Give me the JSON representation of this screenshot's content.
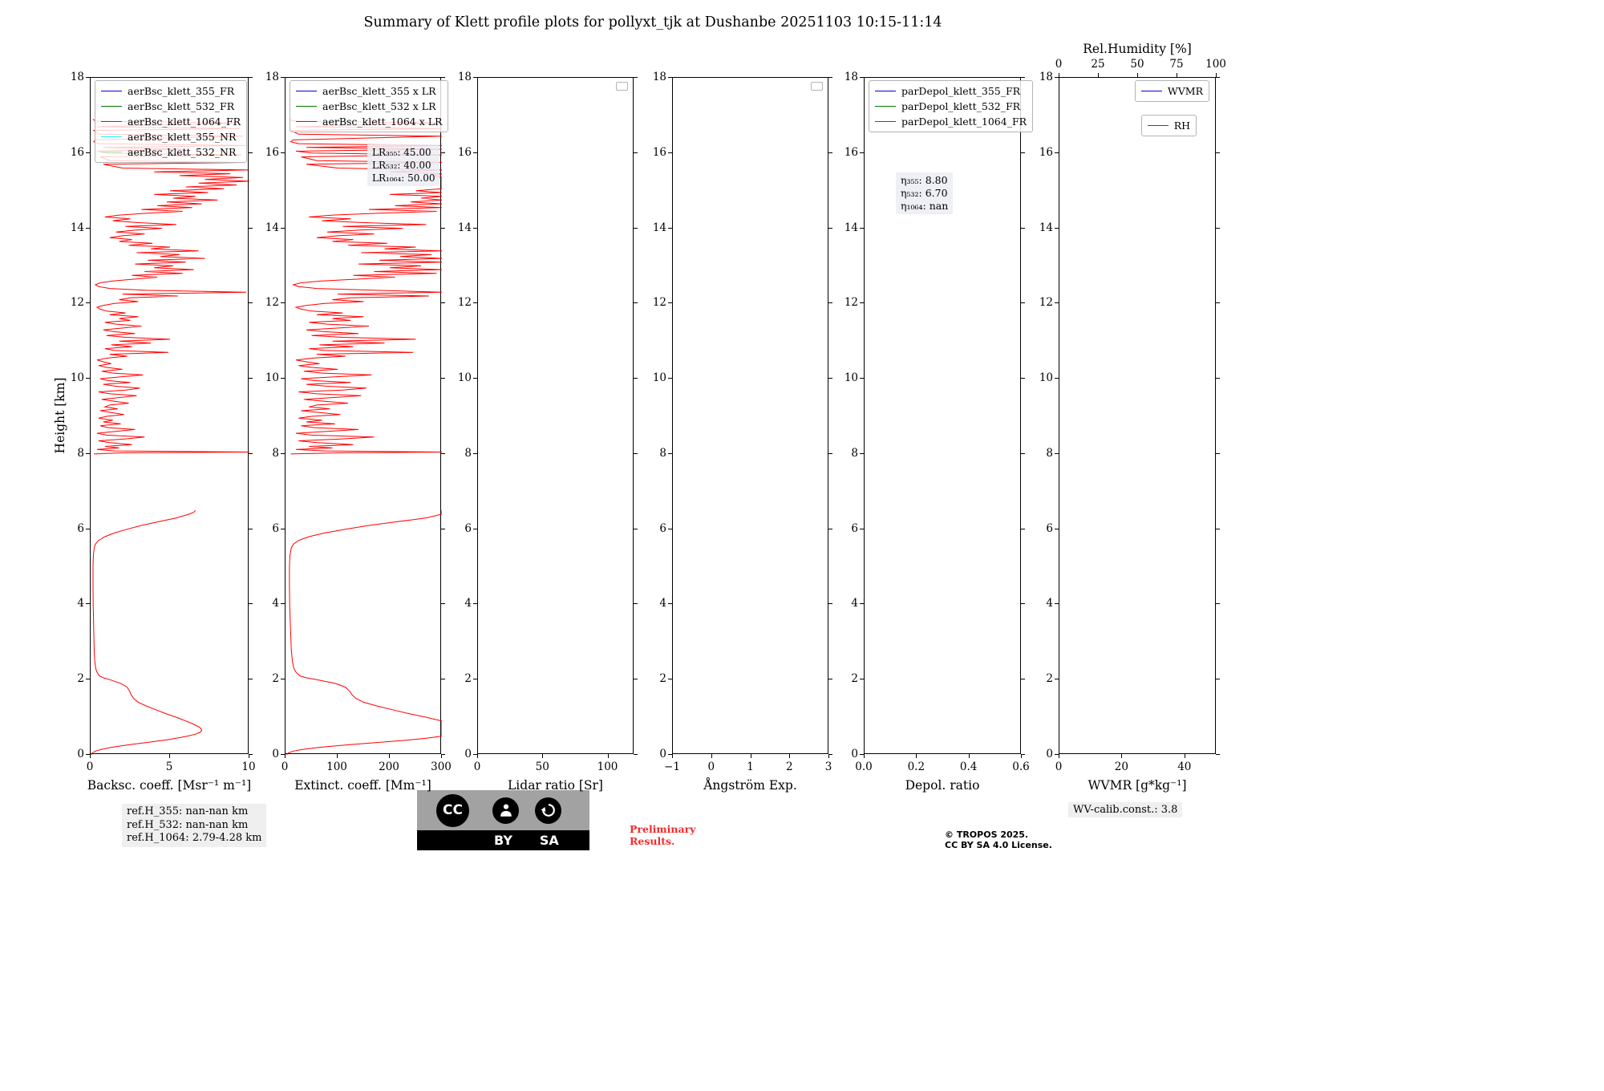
{
  "title": "Summary of Klett profile plots for pollyxt_tjk at Dushanbe 20251103 10:15-11:14",
  "ylabel": "Height [km]",
  "axes_common": {
    "ylim": [
      0,
      18
    ],
    "ytick_vals": [
      0,
      2,
      4,
      6,
      8,
      10,
      12,
      14,
      16,
      18
    ],
    "ytick_labels": [
      "0",
      "2",
      "4",
      "6",
      "8",
      "10",
      "12",
      "14",
      "16",
      "18"
    ]
  },
  "chart_data": [
    {
      "id": "backscatter",
      "type": "line",
      "xlabel": "Backsc. coeff. [Msr⁻¹ m⁻¹]",
      "xlim": [
        0,
        10
      ],
      "xtick_vals": [
        0,
        5,
        10
      ],
      "xtick_labels": [
        "0",
        "5",
        "10"
      ],
      "ylim": [
        0,
        18
      ],
      "legend": [
        {
          "label": "aerBsc_klett_355_FR",
          "color": "#0000cc"
        },
        {
          "label": "aerBsc_klett_532_FR",
          "color": "#007a00"
        },
        {
          "label": "aerBsc_klett_1064_FR",
          "color": "#ff0000"
        },
        {
          "label": "aerBsc_klett_355_NR",
          "color": "#00ffff"
        },
        {
          "label": "aerBsc_klett_532_NR",
          "color": "#99ff99"
        }
      ],
      "series": [
        {
          "name": "aerBsc_klett_1064_FR",
          "color": "#ff0000",
          "profile": "bsc_1064",
          "scale": 1,
          "clip": 10
        }
      ]
    },
    {
      "id": "extinction",
      "type": "line",
      "xlabel": "Extinct. coeff. [Mm⁻¹]",
      "xlim": [
        0,
        300
      ],
      "xtick_vals": [
        0,
        100,
        200,
        300
      ],
      "xtick_labels": [
        "0",
        "100",
        "200",
        "300"
      ],
      "ylim": [
        0,
        18
      ],
      "legend": [
        {
          "label": "aerBsc_klett_355 x LR",
          "color": "#0000cc"
        },
        {
          "label": "aerBsc_klett_532 x LR",
          "color": "#007a00"
        },
        {
          "label": "aerBsc_klett_1064 x LR",
          "color": "#ff0000"
        }
      ],
      "annotation": {
        "lines": [
          "LR₃₅₅: 45.00",
          "LR₅₃₂: 40.00",
          "LR₁₀₆₄: 50.00"
        ]
      },
      "series": [
        {
          "name": "aerBsc_klett_1064_x_LR",
          "color": "#ff0000",
          "profile": "bsc_1064",
          "scale": 50,
          "clip": 300
        }
      ]
    },
    {
      "id": "lidar-ratio",
      "type": "line",
      "xlabel": "Lidar ratio [Sr]",
      "xlim": [
        0,
        120
      ],
      "xtick_vals": [
        0,
        50,
        100
      ],
      "xtick_labels": [
        "0",
        "50",
        "100"
      ],
      "ylim": [
        0,
        18
      ],
      "mini_legend": true,
      "series": []
    },
    {
      "id": "angstroem",
      "type": "line",
      "xlabel": "Ångström Exp.",
      "xlim": [
        -1,
        3
      ],
      "xtick_vals": [
        -1,
        0,
        1,
        2,
        3
      ],
      "xtick_labels": [
        "−1",
        "0",
        "1",
        "2",
        "3"
      ],
      "ylim": [
        0,
        18
      ],
      "mini_legend": true,
      "series": []
    },
    {
      "id": "depol",
      "type": "line",
      "xlabel": "Depol. ratio",
      "xlim": [
        0,
        0.6
      ],
      "xtick_vals": [
        0,
        0.2,
        0.4,
        0.6
      ],
      "xtick_labels": [
        "0.0",
        "0.2",
        "0.4",
        "0.6"
      ],
      "ylim": [
        0,
        18
      ],
      "legend": [
        {
          "label": "parDepol_klett_355_FR",
          "color": "#0000cc"
        },
        {
          "label": "parDepol_klett_532_FR",
          "color": "#007a00"
        },
        {
          "label": "parDepol_klett_1064_FR",
          "color": "#ff0000"
        }
      ],
      "annotation": {
        "lines": [
          "η₃₅₅: 8.80",
          "η₅₃₂: 6.70",
          "η₁₀₆₄: nan"
        ]
      },
      "series": []
    },
    {
      "id": "wvmr",
      "type": "line",
      "xlabel": "WVMR [g*kg⁻¹]",
      "xlim": [
        0,
        50
      ],
      "xtick_vals": [
        0,
        20,
        40
      ],
      "xtick_labels": [
        "0",
        "20",
        "40"
      ],
      "ylim": [
        0,
        18
      ],
      "top_axis": {
        "label": "Rel.Humidity [%]",
        "lim": [
          0,
          100
        ],
        "tick_vals": [
          0,
          25,
          50,
          75,
          100
        ],
        "tick_labels": [
          "0",
          "25",
          "50",
          "75",
          "100"
        ]
      },
      "legend": [
        {
          "label": "WVMR",
          "color": "#0000cc"
        },
        {
          "label": "RH",
          "color": "#007a00"
        }
      ],
      "series": []
    }
  ],
  "profiles": {
    "bsc_1064": {
      "heights": [
        0,
        0.05,
        0.1,
        0.15,
        0.2,
        0.25,
        0.3,
        0.35,
        0.4,
        0.45,
        0.5,
        0.55,
        0.6,
        0.65,
        0.7,
        0.75,
        0.8,
        0.85,
        0.9,
        0.95,
        1.0,
        1.1,
        1.2,
        1.3,
        1.4,
        1.5,
        1.6,
        1.7,
        1.8,
        1.9,
        2.0,
        2.05,
        2.1,
        2.2,
        2.3,
        2.5,
        2.8,
        3.2,
        3.6,
        4.0,
        4.5,
        5.0,
        5.3,
        5.5,
        5.6,
        5.7,
        5.8,
        5.9,
        6.0,
        6.1,
        6.2,
        6.3,
        6.4,
        6.45,
        6.5,
        7.0,
        8.0,
        8.03,
        8.05,
        8.08,
        8.12,
        8.16,
        8.2,
        8.25,
        8.3,
        8.35,
        8.4,
        8.45,
        8.5,
        8.55,
        8.6,
        8.65,
        8.7,
        8.75,
        8.8,
        8.85,
        8.9,
        8.95,
        9.0,
        9.05,
        9.1,
        9.15,
        9.2,
        9.25,
        9.3,
        9.35,
        9.4,
        9.45,
        9.5,
        9.55,
        9.6,
        9.65,
        9.7,
        9.75,
        9.8,
        9.85,
        9.9,
        9.95,
        10.0,
        10.05,
        10.1,
        10.15,
        10.2,
        10.25,
        10.3,
        10.35,
        10.4,
        10.45,
        10.5,
        10.55,
        10.6,
        10.65,
        10.7,
        10.75,
        10.8,
        10.85,
        10.9,
        10.95,
        11.0,
        11.05,
        11.1,
        11.15,
        11.2,
        11.25,
        11.3,
        11.35,
        11.4,
        11.45,
        11.5,
        11.55,
        11.6,
        11.65,
        11.7,
        11.75,
        11.8,
        11.85,
        11.9,
        11.95,
        12.0,
        12.05,
        12.1,
        12.15,
        12.2,
        12.25,
        12.3,
        12.35,
        12.4,
        12.45,
        12.5,
        12.55,
        12.6,
        12.65,
        12.7,
        12.75,
        12.8,
        12.85,
        12.9,
        12.95,
        13.0,
        13.05,
        13.1,
        13.15,
        13.2,
        13.25,
        13.3,
        13.35,
        13.4,
        13.45,
        13.5,
        13.55,
        13.6,
        13.65,
        13.7,
        13.75,
        13.8,
        13.85,
        13.9,
        13.95,
        14.0,
        14.05,
        14.1,
        14.15,
        14.2,
        14.25,
        14.3,
        14.35,
        14.4,
        14.45,
        14.5,
        14.55,
        14.6,
        14.65,
        14.7,
        14.75,
        14.8,
        14.85,
        14.9,
        14.95,
        15.0,
        15.05,
        15.1,
        15.15,
        15.2,
        15.25,
        15.3,
        15.35,
        15.4,
        15.45,
        15.5,
        15.55,
        15.6,
        15.7,
        15.75,
        15.8,
        15.9,
        15.95,
        16.0,
        16.05,
        16.1,
        16.15,
        16.2,
        16.25,
        16.3,
        16.35,
        16.45,
        16.5,
        16.6,
        16.65,
        16.7,
        16.8,
        16.85,
        16.9
      ],
      "values": [
        0.05,
        0.1,
        0.3,
        0.7,
        1.3,
        2.1,
        3.0,
        3.9,
        4.8,
        5.5,
        6.1,
        6.6,
        6.9,
        7.0,
        6.95,
        6.8,
        6.55,
        6.3,
        6.0,
        5.7,
        5.4,
        4.7,
        4.1,
        3.5,
        3.0,
        2.7,
        2.55,
        2.45,
        2.3,
        1.9,
        1.2,
        0.8,
        0.55,
        0.4,
        0.32,
        0.26,
        0.22,
        0.2,
        0.18,
        0.16,
        0.15,
        0.15,
        0.17,
        0.22,
        0.3,
        0.5,
        0.9,
        1.5,
        2.3,
        3.2,
        4.3,
        5.4,
        6.2,
        6.5,
        6.6,
        null,
        0.2,
        2.0,
        10.0,
        1.5,
        0.4,
        1.8,
        0.9,
        2.6,
        1.2,
        0.5,
        2.2,
        3.4,
        1.0,
        0.4,
        1.6,
        2.8,
        1.1,
        0.6,
        1.9,
        0.8,
        1.4,
        0.5,
        1.0,
        2.1,
        1.3,
        0.6,
        1.7,
        0.9,
        1.2,
        2.4,
        1.5,
        0.7,
        1.8,
        2.9,
        1.2,
        0.5,
        2.2,
        3.1,
        1.6,
        0.8,
        2.5,
        1.1,
        0.6,
        1.9,
        3.3,
        1.4,
        0.7,
        2.0,
        1.0,
        0.5,
        1.3,
        0.8,
        0.4,
        1.1,
        2.3,
        1.2,
        4.9,
        1.5,
        0.9,
        2.6,
        1.3,
        3.8,
        1.8,
        5.0,
        2.2,
        1.0,
        2.8,
        1.5,
        0.8,
        2.1,
        3.2,
        1.6,
        0.9,
        2.5,
        1.8,
        3.0,
        1.2,
        2.2,
        1.0,
        0.6,
        0.4,
        0.8,
        1.5,
        3.0,
        1.8,
        2.5,
        5.5,
        2.0,
        9.8,
        3.5,
        1.2,
        0.5,
        0.3,
        0.6,
        1.4,
        2.8,
        4.2,
        2.6,
        5.8,
        3.4,
        6.5,
        4.0,
        5.2,
        2.8,
        6.0,
        3.6,
        7.2,
        4.4,
        5.6,
        2.9,
        6.8,
        3.8,
        5.0,
        2.4,
        3.9,
        1.8,
        2.6,
        1.2,
        2.0,
        3.4,
        1.6,
        2.8,
        4.5,
        2.2,
        5.4,
        3.0,
        1.4,
        2.5,
        0.9,
        1.8,
        3.6,
        5.8,
        3.2,
        6.4,
        4.2,
        7.0,
        4.8,
        8.0,
        5.2,
        6.6,
        4.0,
        7.4,
        5.0,
        8.4,
        6.0,
        9.2,
        6.8,
        10.0,
        7.2,
        9.6,
        5.6,
        8.8,
        4.0,
        9.9,
        2.0,
        0.8,
        9.7,
        1.2,
        0.6,
        9.5,
        1.0,
        0.4,
        6.0,
        0.8,
        9.8,
        0.5,
        0.2,
        0.3,
        9.6,
        0.5,
        0.2,
        9.4,
        0.4,
        9.2,
        0.3,
        0.15
      ]
    }
  },
  "footer": {
    "ref_h": [
      "ref.H_355: nan-nan km",
      "ref.H_532: nan-nan km",
      "ref.H_1064: 2.79-4.28 km"
    ],
    "preliminary": [
      "Preliminary",
      "Results."
    ],
    "copyright": [
      "© TROPOS 2025.",
      "CC BY SA 4.0 License."
    ],
    "wv_calib": "WV-calib.const.: 3.8",
    "badge": {
      "cc": "CC",
      "by": "BY",
      "sa": "SA"
    }
  }
}
